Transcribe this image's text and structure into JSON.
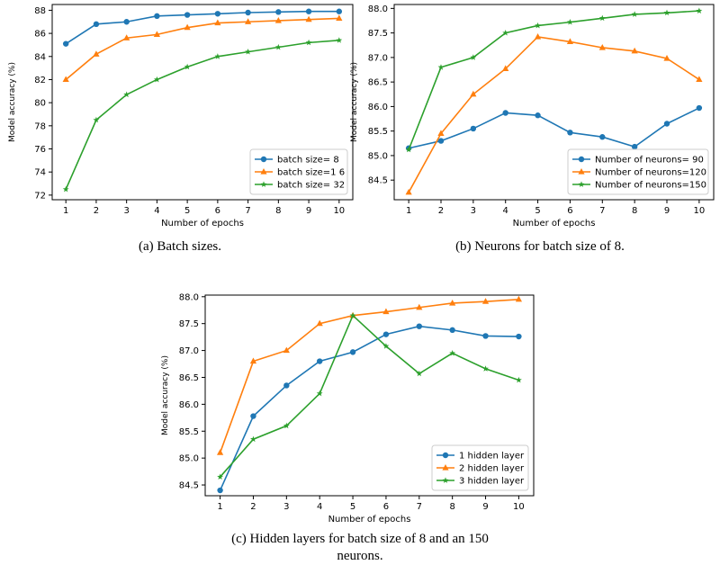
{
  "colors": {
    "blue": "#1f77b4",
    "orange": "#ff7f0e",
    "green": "#2ca02c",
    "axis": "#000000"
  },
  "captions": {
    "a": "(a) Batch sizes.",
    "b": "(b) Neurons for batch size of 8.",
    "c_line1": "(c) Hidden layers for batch size of 8 and an 150",
    "c_line2": "neurons."
  },
  "chart_data": [
    {
      "id": "a",
      "type": "line",
      "xlabel": "Number of epochs",
      "ylabel": "Model accuracy (%)",
      "x": [
        1,
        2,
        3,
        4,
        5,
        6,
        7,
        8,
        9,
        10
      ],
      "xticks": [
        "1",
        "2",
        "3",
        "4",
        "5",
        "6",
        "7",
        "8",
        "9",
        "10"
      ],
      "ylim": [
        71.6,
        88.5
      ],
      "yticks": [
        "72",
        "74",
        "76",
        "78",
        "80",
        "82",
        "84",
        "86",
        "88"
      ],
      "ytick_values": [
        72,
        74,
        76,
        78,
        80,
        82,
        84,
        86,
        88
      ],
      "legend_position": "lower-right",
      "grid": false,
      "series": [
        {
          "name": "batch size= 8",
          "color": "#1f77b4",
          "marker": "circle",
          "values": [
            85.1,
            86.8,
            87.0,
            87.5,
            87.6,
            87.7,
            87.8,
            87.85,
            87.9,
            87.9
          ]
        },
        {
          "name": "batch size=1 6",
          "color": "#ff7f0e",
          "marker": "triangle",
          "values": [
            82.0,
            84.2,
            85.6,
            85.9,
            86.5,
            86.9,
            87.0,
            87.1,
            87.2,
            87.3
          ]
        },
        {
          "name": "batch size= 32",
          "color": "#2ca02c",
          "marker": "star",
          "values": [
            72.5,
            78.5,
            80.7,
            82.0,
            83.1,
            84.0,
            84.4,
            84.8,
            85.2,
            85.4
          ]
        }
      ]
    },
    {
      "id": "b",
      "type": "line",
      "xlabel": "Number of epochs",
      "ylabel": "Model accuracy (%)",
      "x": [
        1,
        2,
        3,
        4,
        5,
        6,
        7,
        8,
        9,
        10
      ],
      "xticks": [
        "1",
        "2",
        "3",
        "4",
        "5",
        "6",
        "7",
        "8",
        "9",
        "10"
      ],
      "ylim": [
        84.1,
        88.08
      ],
      "yticks": [
        "84.5",
        "85.0",
        "85.5",
        "86.0",
        "86.5",
        "87.0",
        "87.5",
        "88.0"
      ],
      "ytick_values": [
        84.5,
        85.0,
        85.5,
        86.0,
        86.5,
        87.0,
        87.5,
        88.0
      ],
      "legend_position": "lower-right",
      "grid": false,
      "series": [
        {
          "name": "Number of neurons= 90",
          "color": "#1f77b4",
          "marker": "circle",
          "values": [
            85.15,
            85.3,
            85.55,
            85.87,
            85.82,
            85.47,
            85.38,
            85.18,
            85.65,
            85.97
          ]
        },
        {
          "name": "Number of neurons=120",
          "color": "#ff7f0e",
          "marker": "triangle",
          "values": [
            84.25,
            85.45,
            86.25,
            86.77,
            87.42,
            87.32,
            87.2,
            87.13,
            86.98,
            86.55
          ]
        },
        {
          "name": "Number of neurons=150",
          "color": "#2ca02c",
          "marker": "star",
          "values": [
            85.12,
            86.8,
            87.0,
            87.5,
            87.65,
            87.72,
            87.8,
            87.88,
            87.91,
            87.95
          ]
        }
      ]
    },
    {
      "id": "c",
      "type": "line",
      "xlabel": "Number of epochs",
      "ylabel": "Model accuracy (%)",
      "x": [
        1,
        2,
        3,
        4,
        5,
        6,
        7,
        8,
        9,
        10
      ],
      "xticks": [
        "1",
        "2",
        "3",
        "4",
        "5",
        "6",
        "7",
        "8",
        "9",
        "10"
      ],
      "ylim": [
        84.3,
        88.03
      ],
      "yticks": [
        "84.5",
        "85.0",
        "85.5",
        "86.0",
        "86.5",
        "87.0",
        "87.5",
        "88.0"
      ],
      "ytick_values": [
        84.5,
        85.0,
        85.5,
        86.0,
        86.5,
        87.0,
        87.5,
        88.0
      ],
      "legend_position": "lower-right",
      "grid": false,
      "series": [
        {
          "name": "1 hidden layer",
          "color": "#1f77b4",
          "marker": "circle",
          "values": [
            84.4,
            85.78,
            86.35,
            86.8,
            86.97,
            87.3,
            87.45,
            87.38,
            87.27,
            87.26
          ]
        },
        {
          "name": "2 hidden layer",
          "color": "#ff7f0e",
          "marker": "triangle",
          "values": [
            85.1,
            86.8,
            87.0,
            87.5,
            87.65,
            87.72,
            87.8,
            87.88,
            87.91,
            87.95
          ]
        },
        {
          "name": "3 hidden layer",
          "color": "#2ca02c",
          "marker": "star",
          "values": [
            84.65,
            85.35,
            85.6,
            86.2,
            87.65,
            87.08,
            86.57,
            86.95,
            86.66,
            86.45
          ]
        }
      ]
    }
  ]
}
